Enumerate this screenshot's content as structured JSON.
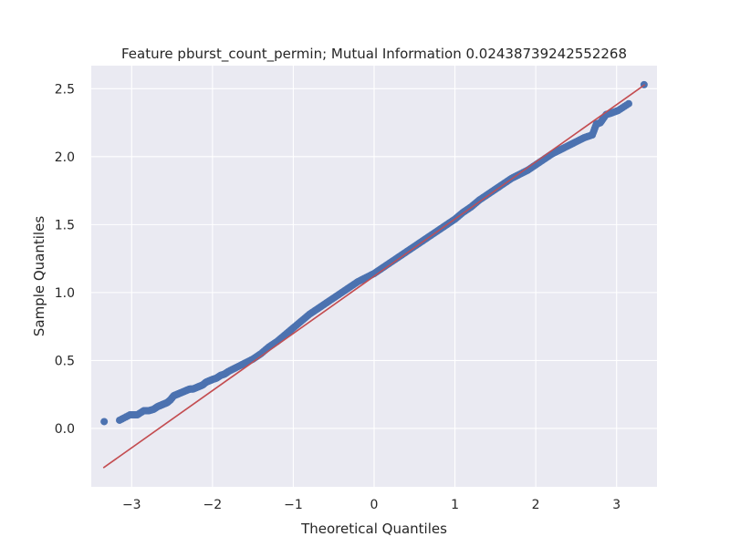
{
  "chart_data": {
    "type": "scatter",
    "title": "Feature pburst_count_permin; Mutual Information 0.02438739242552268",
    "xlabel": "Theoretical Quantiles",
    "ylabel": "Sample Quantiles",
    "xlim": [
      -3.5,
      3.5
    ],
    "ylim": [
      -0.43,
      2.67
    ],
    "x_ticks": [
      -3,
      -2,
      -1,
      0,
      1,
      2,
      3
    ],
    "x_tick_labels": [
      "−3",
      "−2",
      "−1",
      "0",
      "1",
      "2",
      "3"
    ],
    "y_ticks": [
      0.0,
      0.5,
      1.0,
      1.5,
      2.0,
      2.5
    ],
    "y_tick_labels": [
      "0.0",
      "0.5",
      "1.0",
      "1.5",
      "2.0",
      "2.5"
    ],
    "grid": true,
    "background": "#eaeaf2",
    "point_color": "#4c72b0",
    "line_color": "#c44e52",
    "reference_line": {
      "x": [
        -3.35,
        3.35
      ],
      "y": [
        -0.29,
        2.53
      ]
    },
    "series": [
      {
        "values_x": [
          -3.34,
          -3.15,
          -3.02,
          -2.93,
          -2.85,
          -2.79,
          -2.73,
          -2.68,
          -2.64,
          -2.6,
          -2.56,
          -2.52,
          -2.48,
          -2.44,
          -2.4,
          -2.36,
          -2.32,
          -2.28,
          -2.24,
          -2.2,
          -2.16,
          -2.12,
          -2.08,
          -2.04,
          -2.0,
          -1.95,
          -1.9,
          -1.85,
          -1.8,
          -1.7,
          -1.6,
          -1.5,
          -1.4,
          -1.3,
          -1.2,
          -1.1,
          -1.0,
          -0.9,
          -0.8,
          -0.7,
          -0.6,
          -0.5,
          -0.4,
          -0.3,
          -0.2,
          -0.1,
          0.0,
          0.1,
          0.2,
          0.3,
          0.4,
          0.5,
          0.6,
          0.7,
          0.8,
          0.9,
          1.0,
          1.1,
          1.2,
          1.3,
          1.4,
          1.5,
          1.6,
          1.7,
          1.8,
          1.9,
          2.0,
          2.1,
          2.2,
          2.3,
          2.4,
          2.5,
          2.6,
          2.7,
          2.75,
          2.8,
          2.87,
          2.93,
          3.02,
          3.15,
          3.34
        ],
        "values_y": [
          0.05,
          0.06,
          0.1,
          0.1,
          0.13,
          0.13,
          0.14,
          0.16,
          0.17,
          0.18,
          0.19,
          0.21,
          0.24,
          0.25,
          0.26,
          0.27,
          0.28,
          0.29,
          0.29,
          0.3,
          0.31,
          0.32,
          0.34,
          0.35,
          0.36,
          0.37,
          0.39,
          0.4,
          0.42,
          0.45,
          0.48,
          0.51,
          0.55,
          0.6,
          0.64,
          0.69,
          0.74,
          0.79,
          0.84,
          0.88,
          0.92,
          0.96,
          1.0,
          1.04,
          1.08,
          1.11,
          1.14,
          1.18,
          1.22,
          1.26,
          1.3,
          1.34,
          1.38,
          1.42,
          1.46,
          1.5,
          1.54,
          1.59,
          1.63,
          1.68,
          1.72,
          1.76,
          1.8,
          1.84,
          1.87,
          1.9,
          1.94,
          1.98,
          2.02,
          2.05,
          2.08,
          2.11,
          2.14,
          2.16,
          2.24,
          2.25,
          2.31,
          2.32,
          2.34,
          2.39,
          2.53
        ]
      }
    ]
  }
}
